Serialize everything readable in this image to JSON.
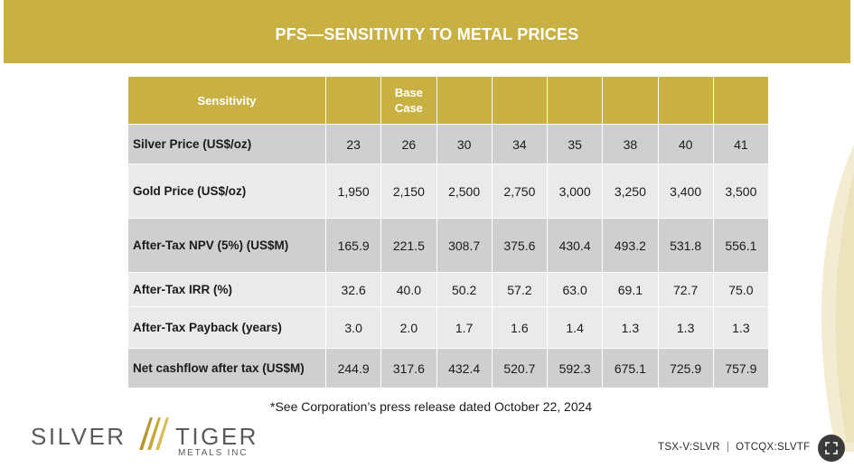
{
  "banner": {
    "title": "PFS—SENSITIVITY TO METAL PRICES"
  },
  "table": {
    "header": [
      "Sensitivity",
      "",
      "Base Case",
      "",
      "",
      "",
      "",
      "",
      ""
    ],
    "rows": [
      {
        "label": "Silver Price (US$/oz)",
        "values": [
          "23",
          "26",
          "30",
          "34",
          "35",
          "38",
          "40",
          "41"
        ],
        "shade": "dark"
      },
      {
        "label": "Gold Price (US$/oz)",
        "values": [
          "1,950",
          "2,150",
          "2,500",
          "2,750",
          "3,000",
          "3,250",
          "3,400",
          "3,500"
        ],
        "shade": "light"
      },
      {
        "label": "After-Tax NPV (5%) (US$M)",
        "values": [
          "165.9",
          "221.5",
          "308.7",
          "375.6",
          "430.4",
          "493.2",
          "531.8",
          "556.1"
        ],
        "shade": "dark"
      },
      {
        "label": "After-Tax IRR (%)",
        "values": [
          "32.6",
          "40.0",
          "50.2",
          "57.2",
          "63.0",
          "69.1",
          "72.7",
          "75.0"
        ],
        "shade": "light"
      },
      {
        "label": "After-Tax Payback (years)",
        "values": [
          "3.0",
          "2.0",
          "1.7",
          "1.6",
          "1.4",
          "1.3",
          "1.3",
          "1.3"
        ],
        "shade": "light"
      },
      {
        "label": "Net cashflow after tax (US$M)",
        "values": [
          "244.9",
          "317.6",
          "432.4",
          "520.7",
          "592.3",
          "675.1",
          "725.9",
          "757.9"
        ],
        "shade": "dark"
      }
    ]
  },
  "footnote": "*See Corporation’s press release dated October 22, 2024",
  "logo": {
    "word1": "SILVER",
    "word2": "TIGER",
    "sub": "METALS INC"
  },
  "ticker": {
    "tsx": "TSX-V:SLVR",
    "otc": "OTCQX:SLVTF",
    "separator": "|"
  },
  "colors": {
    "gold": "#c9b042",
    "row_dark": "#cfcfcf",
    "row_light": "#eaeaea"
  },
  "icons": {
    "expand": "expand-icon",
    "logo_mark": "claw-mark-icon"
  }
}
